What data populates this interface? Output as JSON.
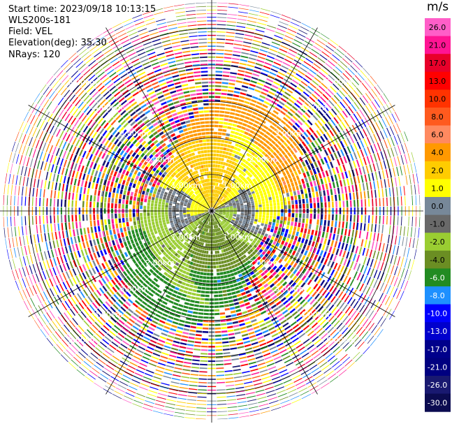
{
  "header": {
    "start_time": "Start time: 2023/09/18 10:13:15",
    "instrument": "WLS200s-181",
    "field": "Field: VEL",
    "elevation": "Elevation(deg): 35.30",
    "nrays": "NRays: 120"
  },
  "chart_data": {
    "type": "heatmap",
    "projection": "polar-ppi",
    "field": "VEL",
    "units": "m/s",
    "nrays": 120,
    "range_rings_km": [
      1.0,
      2.0,
      3.0,
      4.0,
      5.0
    ],
    "ring_labels": [
      "1.00km",
      "2.00km",
      "3.00km",
      "4.00km",
      "5.00km"
    ],
    "azimuth_lines_deg": [
      0,
      30,
      60,
      90,
      120,
      150,
      180,
      210,
      240,
      270,
      300,
      330
    ],
    "colorbar": {
      "ticks": [
        26.0,
        21.0,
        17.0,
        13.0,
        10.0,
        8.0,
        6.0,
        4.0,
        2.0,
        1.0,
        0.0,
        -1.0,
        -2.0,
        -4.0,
        -6.0,
        -8.0,
        -10.0,
        -13.0,
        -17.0,
        -21.0,
        -26.0,
        -30.0
      ],
      "tick_labels": [
        "26.0",
        "21.0",
        "17.0",
        "13.0",
        "10.0",
        "8.0",
        "6.0",
        "4.0",
        "2.0",
        "1.0",
        "0.0",
        "-1.0",
        "-2.0",
        "-4.0",
        "-6.0",
        "-8.0",
        "-10.0",
        "-13.0",
        "-17.0",
        "-21.0",
        "-26.0",
        "-30.0"
      ],
      "colors": [
        "#ff5ec8",
        "#ff1493",
        "#e8002a",
        "#ff0000",
        "#ff3300",
        "#ff5a1e",
        "#ff8a60",
        "#ff9900",
        "#ffcc00",
        "#ffff00",
        "#778899",
        "#696969",
        "#9acd32",
        "#6b8e23",
        "#228b22",
        "#1e90ff",
        "#0000ff",
        "#0000cd",
        "#00008b",
        "#000080",
        "#191970",
        "#0b0b50"
      ]
    }
  }
}
